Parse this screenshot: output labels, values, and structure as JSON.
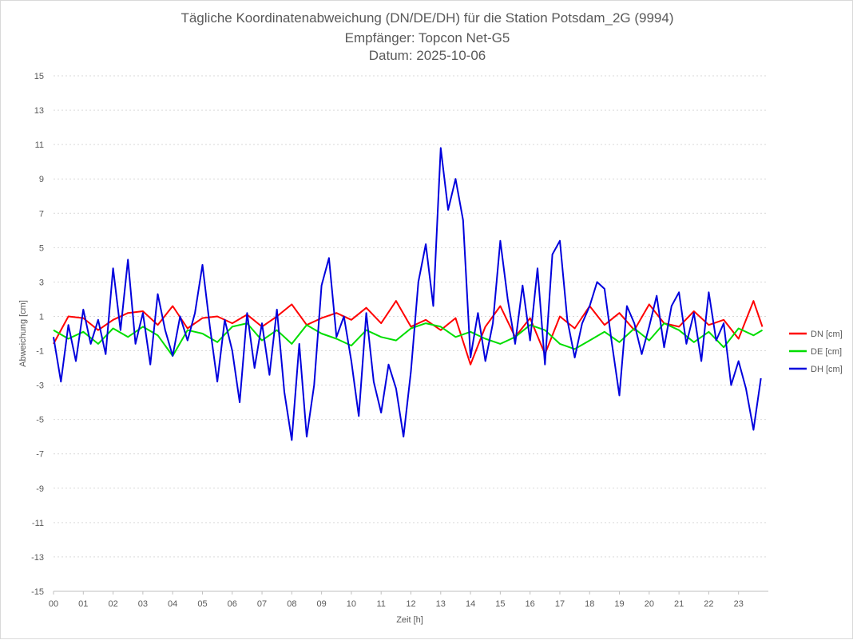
{
  "chart_data": {
    "type": "line",
    "title": "Tägliche Koordinatenabweichung (DN/DE/DH) für die Station Potsdam_2G (9994)",
    "subtitle": "Empfänger: Topcon Net-G5",
    "date_line": "Datum: 2025-10-06",
    "xlabel": "Zeit [h]",
    "ylabel": "Abweichung [cm]",
    "xlim": [
      0,
      24
    ],
    "ylim": [
      -15,
      15
    ],
    "x_ticks": [
      "00",
      "01",
      "02",
      "03",
      "04",
      "05",
      "06",
      "07",
      "08",
      "09",
      "10",
      "11",
      "12",
      "13",
      "14",
      "15",
      "16",
      "17",
      "18",
      "19",
      "20",
      "21",
      "22",
      "23"
    ],
    "y_ticks": [
      15,
      13,
      11,
      9,
      7,
      5,
      3,
      1,
      -1,
      -3,
      -5,
      -7,
      -9,
      -11,
      -13,
      -15
    ],
    "grid": "horizontal dotted",
    "legend_position": "right",
    "series": [
      {
        "name": "DN [cm]",
        "color": "#ff0000",
        "x": [
          0,
          0.5,
          1,
          1.5,
          2,
          2.5,
          3,
          3.5,
          4,
          4.5,
          5,
          5.5,
          6,
          6.5,
          7,
          7.5,
          8,
          8.5,
          9,
          9.5,
          10,
          10.5,
          11,
          11.5,
          12,
          12.5,
          13,
          13.5,
          14,
          14.5,
          15,
          15.5,
          16,
          16.5,
          17,
          17.5,
          18,
          18.5,
          19,
          19.5,
          20,
          20.5,
          21,
          21.5,
          22,
          22.5,
          23,
          23.5,
          23.8
        ],
        "y": [
          -0.6,
          1.0,
          0.9,
          0.2,
          0.8,
          1.2,
          1.3,
          0.5,
          1.6,
          0.3,
          0.9,
          1.0,
          0.6,
          1.1,
          0.4,
          1.0,
          1.7,
          0.5,
          0.9,
          1.2,
          0.8,
          1.5,
          0.6,
          1.9,
          0.4,
          0.8,
          0.2,
          0.9,
          -1.8,
          0.4,
          1.6,
          -0.2,
          0.9,
          -1.2,
          1.0,
          0.3,
          1.6,
          0.5,
          1.2,
          0.2,
          1.7,
          0.6,
          0.4,
          1.3,
          0.5,
          0.8,
          -0.3,
          1.9,
          0.4
        ]
      },
      {
        "name": "DE [cm]",
        "color": "#00dd00",
        "x": [
          0,
          0.5,
          1,
          1.5,
          2,
          2.5,
          3,
          3.5,
          4,
          4.5,
          5,
          5.5,
          6,
          6.5,
          7,
          7.5,
          8,
          8.5,
          9,
          9.5,
          10,
          10.5,
          11,
          11.5,
          12,
          12.5,
          13,
          13.5,
          14,
          14.5,
          15,
          15.5,
          16,
          16.5,
          17,
          17.5,
          18,
          18.5,
          19,
          19.5,
          20,
          20.5,
          21,
          21.5,
          22,
          22.5,
          23,
          23.5,
          23.8
        ],
        "y": [
          0.2,
          -0.3,
          0.1,
          -0.6,
          0.3,
          -0.2,
          0.4,
          -0.1,
          -1.3,
          0.2,
          0.0,
          -0.5,
          0.4,
          0.6,
          -0.4,
          0.2,
          -0.6,
          0.5,
          0.0,
          -0.3,
          -0.7,
          0.2,
          -0.2,
          -0.4,
          0.3,
          0.6,
          0.4,
          -0.2,
          0.1,
          -0.3,
          -0.6,
          -0.2,
          0.5,
          0.2,
          -0.6,
          -0.9,
          -0.4,
          0.1,
          -0.5,
          0.3,
          -0.4,
          0.6,
          0.2,
          -0.5,
          0.1,
          -0.8,
          0.3,
          -0.1,
          0.2
        ]
      },
      {
        "name": "DH [cm]",
        "color": "#0000dd",
        "x": [
          0,
          0.25,
          0.5,
          0.75,
          1,
          1.25,
          1.5,
          1.75,
          2,
          2.25,
          2.5,
          2.75,
          3,
          3.25,
          3.5,
          3.75,
          4,
          4.25,
          4.5,
          4.75,
          5,
          5.25,
          5.5,
          5.75,
          6,
          6.25,
          6.5,
          6.75,
          7,
          7.25,
          7.5,
          7.75,
          8,
          8.25,
          8.5,
          8.75,
          9,
          9.25,
          9.5,
          9.75,
          10,
          10.25,
          10.5,
          10.75,
          11,
          11.25,
          11.5,
          11.75,
          12,
          12.25,
          12.5,
          12.75,
          13,
          13.25,
          13.5,
          13.75,
          14,
          14.25,
          14.5,
          14.75,
          15,
          15.25,
          15.5,
          15.75,
          16,
          16.25,
          16.5,
          16.75,
          17,
          17.25,
          17.5,
          17.75,
          18,
          18.25,
          18.5,
          18.75,
          19,
          19.25,
          19.5,
          19.75,
          20,
          20.25,
          20.5,
          20.75,
          21,
          21.25,
          21.5,
          21.75,
          22,
          22.25,
          22.5,
          22.75,
          23,
          23.25,
          23.5,
          23.75
        ],
        "y": [
          -0.2,
          -2.8,
          0.5,
          -1.6,
          1.4,
          -0.6,
          0.8,
          -1.2,
          3.8,
          0.2,
          4.3,
          -0.6,
          1.2,
          -1.8,
          2.3,
          0.2,
          -1.3,
          1.0,
          -0.4,
          1.2,
          4.0,
          0.4,
          -2.8,
          0.8,
          -1.0,
          -4.0,
          1.2,
          -2.0,
          0.6,
          -2.4,
          1.4,
          -3.4,
          -6.2,
          -0.6,
          -6.0,
          -3.0,
          2.8,
          4.4,
          -0.2,
          1.0,
          -1.6,
          -4.8,
          1.2,
          -2.8,
          -4.6,
          -1.8,
          -3.2,
          -6.0,
          -2.2,
          3.0,
          5.2,
          1.6,
          10.8,
          7.2,
          9.0,
          6.6,
          -1.4,
          1.2,
          -1.6,
          0.6,
          5.4,
          2.0,
          -0.6,
          2.8,
          -0.4,
          3.8,
          -1.8,
          4.6,
          5.4,
          0.8,
          -1.4,
          0.6,
          1.6,
          3.0,
          2.6,
          -0.6,
          -3.6,
          1.6,
          0.6,
          -1.2,
          0.4,
          2.2,
          -0.8,
          1.6,
          2.4,
          -0.6,
          1.2,
          -1.6,
          2.4,
          -0.4,
          0.6,
          -3.0,
          -1.6,
          -3.2,
          -5.6,
          -2.6
        ]
      }
    ]
  }
}
